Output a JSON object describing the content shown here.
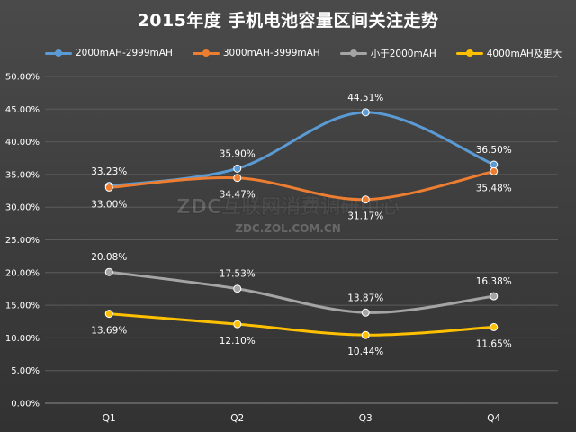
{
  "chart_data": {
    "type": "line",
    "title": "2015年度 手机电池容量区间关注走势",
    "categories": [
      "Q1",
      "Q2",
      "Q3",
      "Q4"
    ],
    "ylim": [
      0,
      50
    ],
    "yticks": [
      "0.00%",
      "5.00%",
      "10.00%",
      "15.00%",
      "20.00%",
      "25.00%",
      "30.00%",
      "35.00%",
      "40.00%",
      "45.00%",
      "50.00%"
    ],
    "grid": true,
    "legend_position": "top",
    "series": [
      {
        "name": "2000mAH-2999mAH",
        "color": "#5b9bd5",
        "values": [
          33.23,
          35.9,
          44.51,
          36.5
        ],
        "labels": [
          "33.23%",
          "35.90%",
          "44.51%",
          "36.50%"
        ]
      },
      {
        "name": "3000mAH-3999mAH",
        "color": "#ed7d31",
        "values": [
          33.0,
          34.47,
          31.17,
          35.48
        ],
        "labels": [
          "33.00%",
          "34.47%",
          "31.17%",
          "35.48%"
        ]
      },
      {
        "name": "小于2000mAH",
        "color": "#a5a5a5",
        "values": [
          20.08,
          17.53,
          13.87,
          16.38
        ],
        "labels": [
          "20.08%",
          "17.53%",
          "13.87%",
          "16.38%"
        ]
      },
      {
        "name": "4000mAH及更大",
        "color": "#ffc000",
        "values": [
          13.69,
          12.1,
          10.44,
          11.65
        ],
        "labels": [
          "13.69%",
          "12.10%",
          "10.44%",
          "11.65%"
        ]
      }
    ]
  },
  "watermark": {
    "line1": "ZDC互联网消费调研中心",
    "line2": "ZDC.ZOL.COM.CN"
  }
}
